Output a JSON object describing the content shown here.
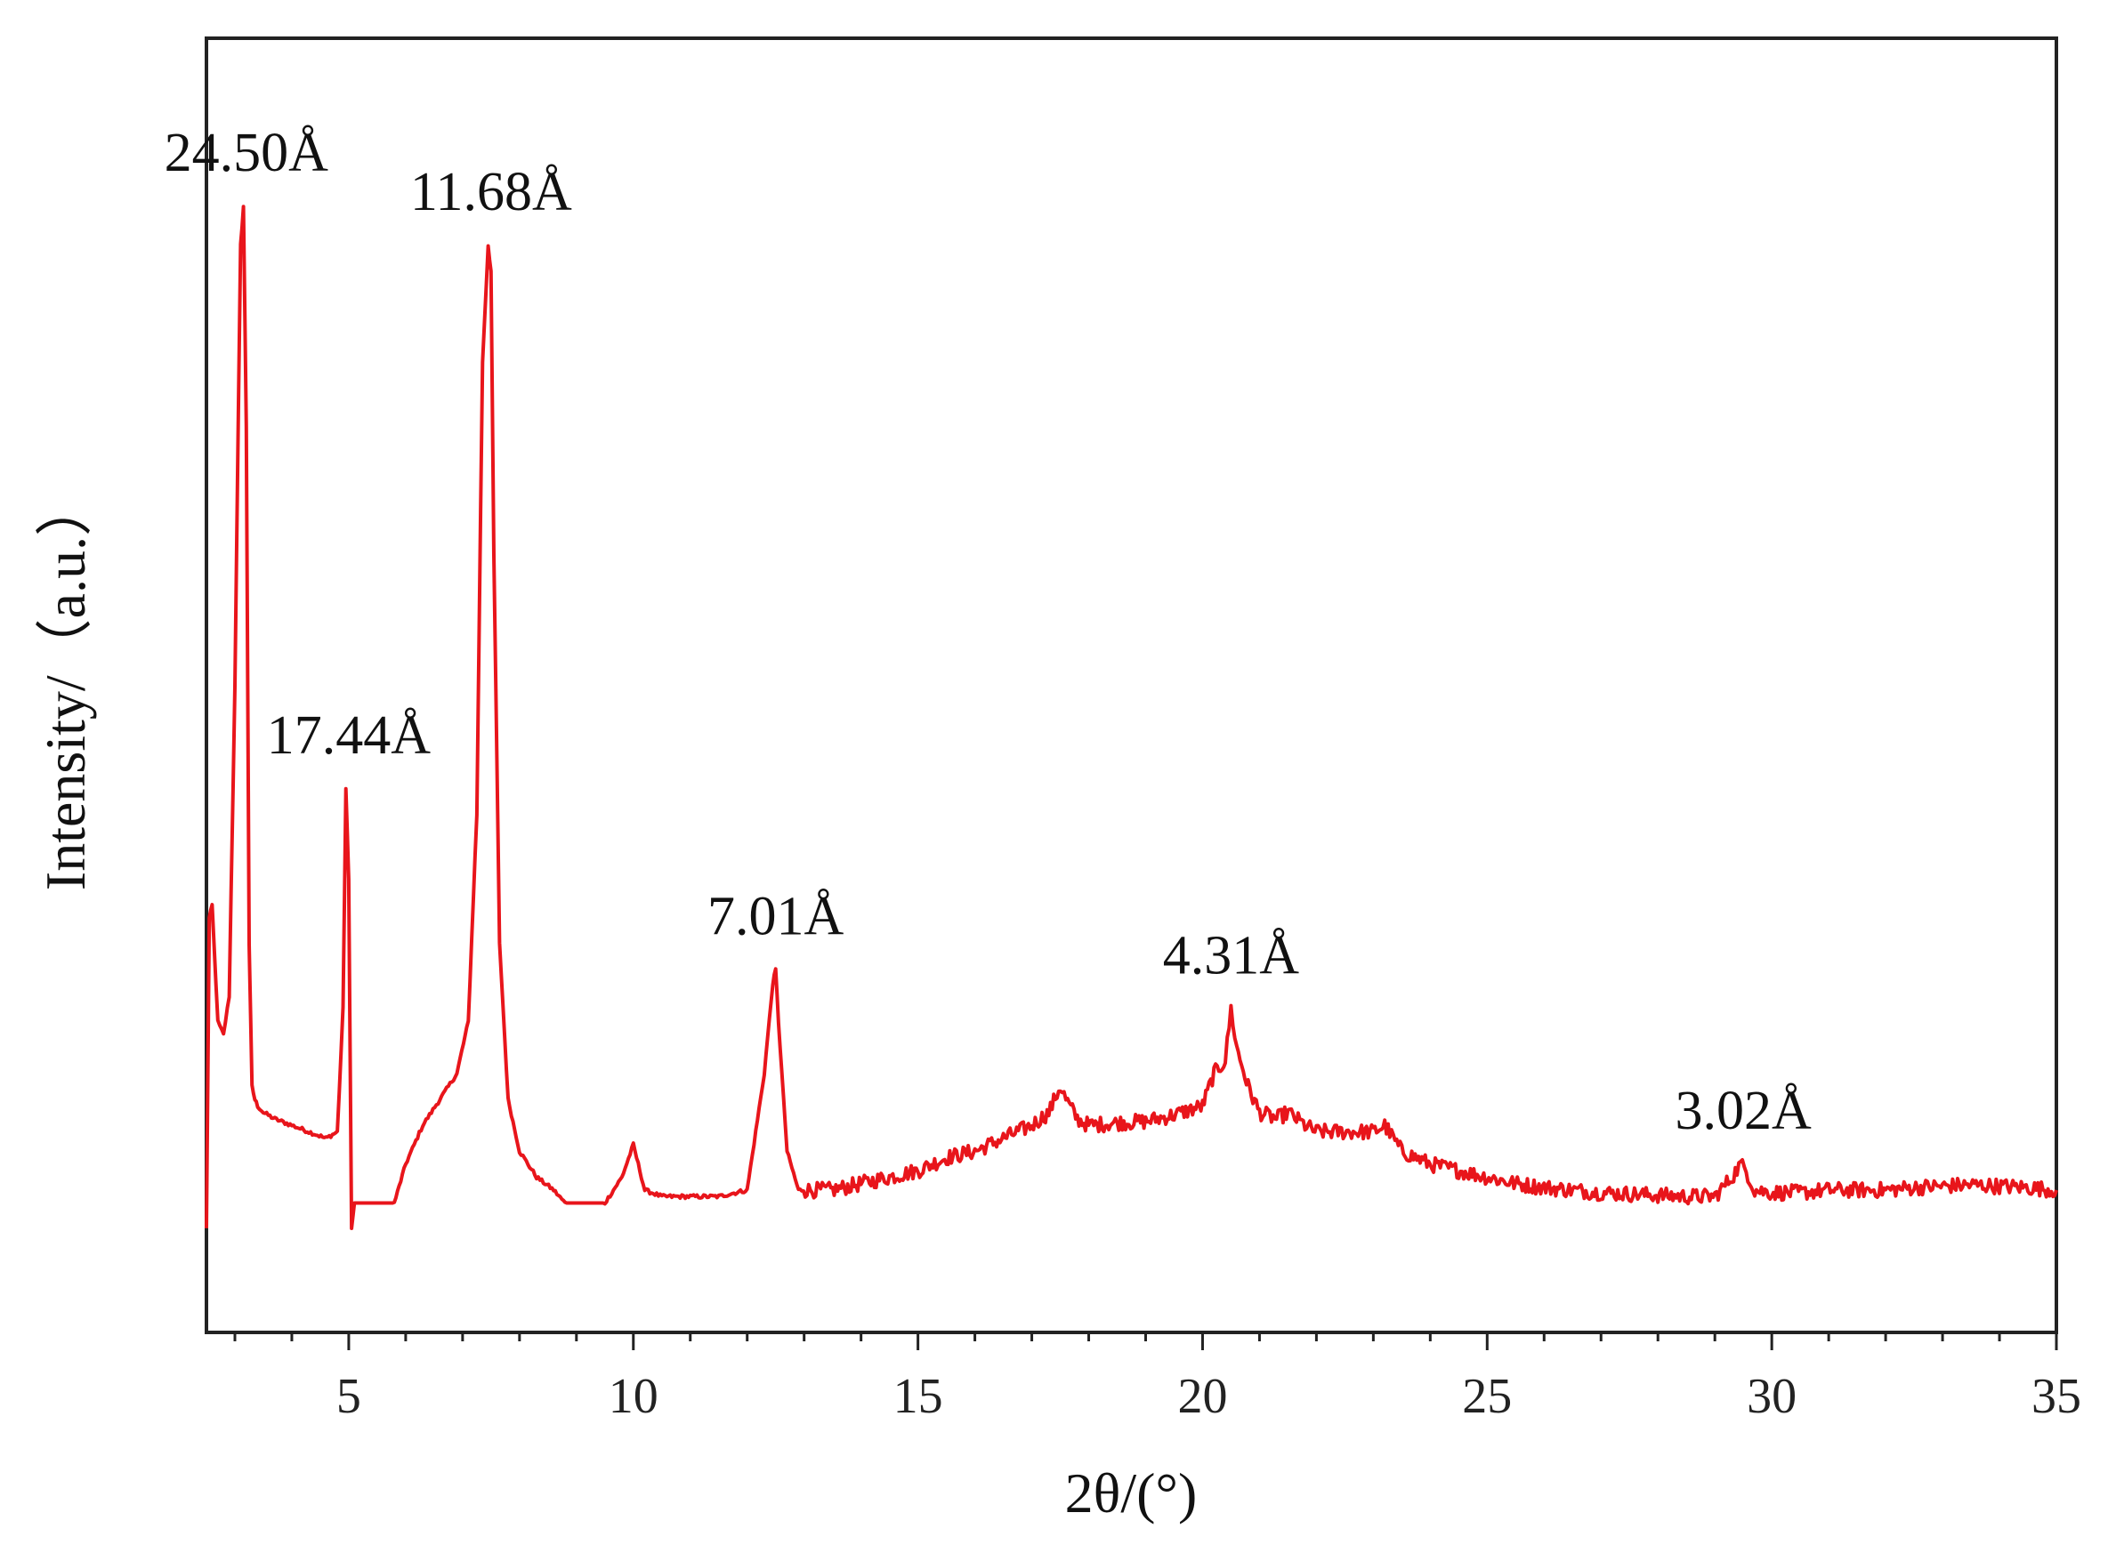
{
  "chart_data": {
    "type": "line",
    "xlabel": "2θ/(°)",
    "ylabel": "Intensity/（a.u.）",
    "xlim": [
      2.5,
      35
    ],
    "ylim": [
      0,
      1
    ],
    "xticks": [
      "5",
      "10",
      "15",
      "20",
      "25",
      "30",
      "35"
    ],
    "grid": false,
    "series": [
      {
        "color": "#e8151b",
        "x": [
          2.5,
          2.55,
          2.6,
          2.7,
          2.8,
          2.9,
          3.0,
          3.1,
          3.15,
          3.2,
          3.25,
          3.3,
          3.35,
          3.4,
          3.5,
          3.7,
          4.0,
          4.3,
          4.6,
          4.8,
          4.9,
          4.95,
          5.0,
          5.05,
          5.1,
          5.2,
          5.5,
          5.8,
          6.0,
          6.3,
          6.6,
          6.9,
          7.1,
          7.25,
          7.35,
          7.45,
          7.5,
          7.55,
          7.65,
          7.8,
          8.0,
          8.3,
          8.6,
          8.8,
          9.5,
          9.8,
          10.0,
          10.2,
          10.5,
          11.0,
          11.5,
          12.0,
          12.3,
          12.45,
          12.5,
          12.55,
          12.7,
          12.9,
          13.5,
          14.0,
          14.5,
          15.0,
          15.5,
          16.0,
          16.5,
          17.0,
          17.3,
          17.5,
          17.6,
          17.8,
          18.0,
          18.5,
          19.0,
          19.5,
          20.0,
          20.2,
          20.4,
          20.5,
          20.6,
          20.8,
          21.0,
          21.3,
          21.5,
          21.8,
          22.0,
          22.5,
          23.0,
          23.2,
          23.5,
          24.0,
          24.5,
          25.0,
          25.5,
          26.0,
          26.5,
          27.0,
          27.5,
          28.0,
          28.5,
          29.0,
          29.3,
          29.45,
          29.55,
          29.7,
          30.0,
          30.5,
          31.0,
          31.5,
          32.0,
          32.5,
          33.0,
          33.5,
          34.0,
          34.5,
          35.0
        ],
        "y": [
          0.08,
          0.32,
          0.33,
          0.24,
          0.23,
          0.26,
          0.5,
          0.84,
          0.87,
          0.7,
          0.3,
          0.19,
          0.18,
          0.175,
          0.17,
          0.165,
          0.16,
          0.155,
          0.15,
          0.155,
          0.25,
          0.42,
          0.35,
          0.08,
          0.1,
          0.1,
          0.1,
          0.1,
          0.13,
          0.16,
          0.18,
          0.2,
          0.24,
          0.4,
          0.75,
          0.84,
          0.82,
          0.6,
          0.3,
          0.18,
          0.14,
          0.12,
          0.11,
          0.1,
          0.1,
          0.12,
          0.145,
          0.11,
          0.105,
          0.105,
          0.105,
          0.11,
          0.2,
          0.27,
          0.28,
          0.24,
          0.14,
          0.11,
          0.11,
          0.115,
          0.12,
          0.125,
          0.135,
          0.14,
          0.15,
          0.16,
          0.17,
          0.19,
          0.18,
          0.165,
          0.16,
          0.162,
          0.163,
          0.168,
          0.175,
          0.2,
          0.21,
          0.25,
          0.22,
          0.19,
          0.17,
          0.165,
          0.17,
          0.16,
          0.155,
          0.155,
          0.155,
          0.16,
          0.14,
          0.13,
          0.125,
          0.12,
          0.115,
          0.112,
          0.11,
          0.108,
          0.107,
          0.106,
          0.105,
          0.105,
          0.12,
          0.13,
          0.125,
          0.11,
          0.108,
          0.108,
          0.11,
          0.11,
          0.11,
          0.112,
          0.113,
          0.114,
          0.113,
          0.112,
          0.11
        ]
      }
    ],
    "annotations": [
      {
        "text": "24.50Å",
        "x": 3.2,
        "y": 0.87
      },
      {
        "text": "11.68Å",
        "x": 7.5,
        "y": 0.84
      },
      {
        "text": "17.44Å",
        "x": 5.0,
        "y": 0.42
      },
      {
        "text": "7.01Å",
        "x": 12.5,
        "y": 0.28
      },
      {
        "text": "4.31Å",
        "x": 20.5,
        "y": 0.25
      },
      {
        "text": "3.02Å",
        "x": 29.5,
        "y": 0.13
      }
    ]
  }
}
